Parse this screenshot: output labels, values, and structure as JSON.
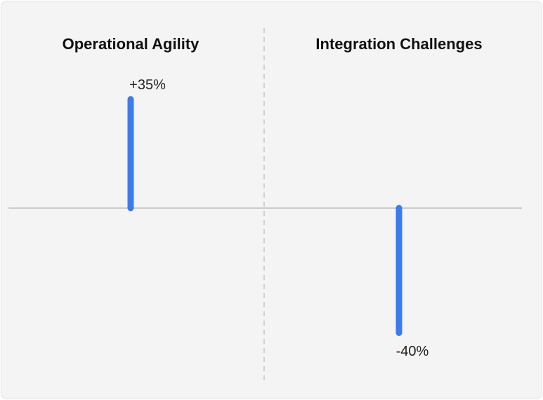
{
  "chart_data": {
    "type": "bar",
    "categories": [
      "Operational Agility",
      "Integration Challenges"
    ],
    "values": [
      35,
      -40
    ],
    "value_labels": [
      "+35%",
      "-40%"
    ],
    "unit": "%",
    "ylim": [
      -40,
      35
    ],
    "title": "",
    "xlabel": "",
    "ylabel": "",
    "grid": false,
    "colors": {
      "bar": "#3b7bef",
      "baseline": "#bdbdbd",
      "divider": "#c4c4c4",
      "background": "#f4f4f4"
    }
  }
}
